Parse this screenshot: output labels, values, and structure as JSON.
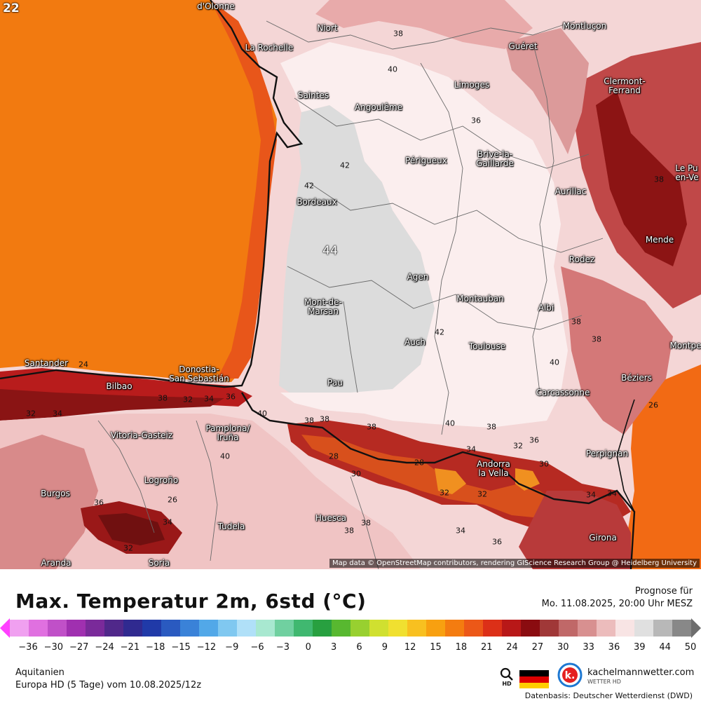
{
  "map": {
    "run_hour": "22",
    "attribution": "Map data © OpenStreetMap contributors, rendering GIScience Research Group @ Heidelberg University",
    "cities": [
      {
        "name": "d'Olonne"
      },
      {
        "name": "Niort"
      },
      {
        "name": "La Rochelle"
      },
      {
        "name": "Saintes"
      },
      {
        "name": "Angoulême"
      },
      {
        "name": "Limoges"
      },
      {
        "name": "Guéret"
      },
      {
        "name": "Montluçon"
      },
      {
        "name": "Clermont-\nFerrand"
      },
      {
        "name": "Périgueux"
      },
      {
        "name": "Brive-la-\nGaillarde"
      },
      {
        "name": "Aurillac"
      },
      {
        "name": "Le Pu\nen-Ve"
      },
      {
        "name": "Bordeaux"
      },
      {
        "name": "Mende"
      },
      {
        "name": "Rodez"
      },
      {
        "name": "Agen"
      },
      {
        "name": "Mont-de-\nMarsan"
      },
      {
        "name": "Montauban"
      },
      {
        "name": "Albi"
      },
      {
        "name": "Auch"
      },
      {
        "name": "Toulouse"
      },
      {
        "name": "Montpe"
      },
      {
        "name": "Santander"
      },
      {
        "name": "Donostia-\nSan Sebastián"
      },
      {
        "name": "Bilbao"
      },
      {
        "name": "Pau"
      },
      {
        "name": "Béziers"
      },
      {
        "name": "Carcassonne"
      },
      {
        "name": "Pamplona/\nIruña"
      },
      {
        "name": "Vitoria-Gasteiz"
      },
      {
        "name": "Perpignan"
      },
      {
        "name": "Andorra\nla Vella"
      },
      {
        "name": "Logroño"
      },
      {
        "name": "Burgos"
      },
      {
        "name": "Huesca"
      },
      {
        "name": "Tudela"
      },
      {
        "name": "Girona"
      },
      {
        "name": "Aranda"
      },
      {
        "name": "Soria"
      }
    ],
    "isolines": [
      "38",
      "40",
      "36",
      "38",
      "42",
      "42",
      "44",
      "42",
      "38",
      "38",
      "40",
      "24",
      "38",
      "32",
      "34",
      "36",
      "32",
      "34",
      "40",
      "38",
      "38",
      "38",
      "40",
      "38",
      "36",
      "28",
      "34",
      "28",
      "32",
      "30",
      "26",
      "34",
      "32",
      "30",
      "40",
      "38",
      "34",
      "36",
      "36",
      "34",
      "32",
      "26",
      "32",
      "34",
      "38"
    ]
  },
  "footer": {
    "title": "Max. Temperatur 2m, 6std (°C)",
    "forecast_label": "Prognose für",
    "forecast_time": "Mo. 11.08.2025, 20:00 Uhr MESZ",
    "region": "Aquitanien",
    "model_run": "Europa HD (5 Tage) vom  10.08.2025/12z",
    "hd_label": "HD",
    "brand_name": "kachelmannwetter.com",
    "brand_sub": "WETTER HD",
    "datasource": "Datenbasis: Deutscher Wetterdienst (DWD)"
  },
  "colorbar": {
    "ticks": [
      "−36",
      "−30",
      "−27",
      "−24",
      "−21",
      "−18",
      "−15",
      "−12",
      "−9",
      "−6",
      "−3",
      "0",
      "3",
      "6",
      "9",
      "12",
      "15",
      "18",
      "21",
      "24",
      "27",
      "30",
      "33",
      "36",
      "39",
      "44",
      "50"
    ],
    "colors": [
      "#f0a0f0",
      "#e070e0",
      "#c050c8",
      "#a030b0",
      "#7a2a9a",
      "#50288a",
      "#302a90",
      "#203aa8",
      "#2a5ac0",
      "#3a82d8",
      "#52a8e8",
      "#80c8f0",
      "#b0e0f8",
      "#a8e8d0",
      "#70d0a0",
      "#40b870",
      "#28a040",
      "#58b830",
      "#98d030",
      "#d0e030",
      "#f0e030",
      "#f8c020",
      "#f8a010",
      "#f47c10",
      "#ec5818",
      "#dc3018",
      "#b81818",
      "#8a0c10",
      "#a03838",
      "#c06868",
      "#d89090",
      "#ecbcbc",
      "#f8e4e4",
      "#e0e0e0",
      "#b8b8b8",
      "#888888"
    ]
  }
}
